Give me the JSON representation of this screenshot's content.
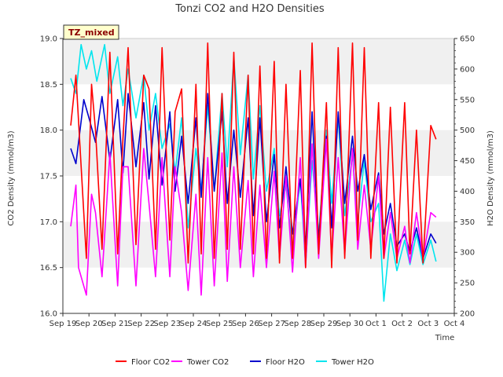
{
  "chart_data": {
    "type": "line",
    "title": "Tonzi CO2 and H2O Densities",
    "badge": "TZ_mixed",
    "xlabel": "Time",
    "ylabel_left": "CO2 Density (mmol/m3)",
    "ylabel_right": "H2O Density (mmol/m3)",
    "xlim": [
      0,
      15
    ],
    "ylim_left": [
      16.0,
      19.0
    ],
    "ylim_right": [
      200,
      650
    ],
    "x_ticks": [
      {
        "pos": 0,
        "label": "Sep 19"
      },
      {
        "pos": 1,
        "label": "Sep 20"
      },
      {
        "pos": 2,
        "label": "Sep 21"
      },
      {
        "pos": 3,
        "label": "Sep 22"
      },
      {
        "pos": 4,
        "label": "Sep 23"
      },
      {
        "pos": 5,
        "label": "Sep 24"
      },
      {
        "pos": 6,
        "label": "Sep 25"
      },
      {
        "pos": 7,
        "label": "Sep 26"
      },
      {
        "pos": 8,
        "label": "Sep 27"
      },
      {
        "pos": 9,
        "label": "Sep 28"
      },
      {
        "pos": 10,
        "label": "Sep 29"
      },
      {
        "pos": 11,
        "label": "Sep 30"
      },
      {
        "pos": 12,
        "label": "Oct 1"
      },
      {
        "pos": 13,
        "label": "Oct 2"
      },
      {
        "pos": 14,
        "label": "Oct 3"
      },
      {
        "pos": 15,
        "label": "Oct 4"
      }
    ],
    "y_ticks_left": [
      "16.0",
      "16.5",
      "17.0",
      "17.5",
      "18.0",
      "18.5",
      "19.0"
    ],
    "y_ticks_right": [
      "200",
      "250",
      "300",
      "350",
      "400",
      "450",
      "500",
      "550",
      "600",
      "650"
    ],
    "grid": "horizontal bands",
    "legend_position": "bottom",
    "series": [
      {
        "name": "Floor CO2",
        "color": "#ff0000",
        "axis": "left",
        "x": [
          0.3,
          0.5,
          0.9,
          1.1,
          1.25,
          1.5,
          1.8,
          2.1,
          2.3,
          2.5,
          2.8,
          3.1,
          3.3,
          3.55,
          3.8,
          4.1,
          4.3,
          4.55,
          4.8,
          5.1,
          5.3,
          5.55,
          5.8,
          6.1,
          6.3,
          6.55,
          6.8,
          7.1,
          7.3,
          7.55,
          7.8,
          8.1,
          8.3,
          8.55,
          8.8,
          9.1,
          9.3,
          9.55,
          9.8,
          10.1,
          10.3,
          10.55,
          10.8,
          11.1,
          11.3,
          11.55,
          11.8,
          12.1,
          12.3,
          12.55,
          12.8,
          13.1,
          13.3,
          13.55,
          13.8,
          14.1,
          14.3
        ],
        "y": [
          18.05,
          18.6,
          16.6,
          18.5,
          18.0,
          16.7,
          18.85,
          16.65,
          17.9,
          18.9,
          16.75,
          18.6,
          18.45,
          16.7,
          18.9,
          16.8,
          18.2,
          18.45,
          16.55,
          18.5,
          16.65,
          18.95,
          16.6,
          18.4,
          16.7,
          18.85,
          16.7,
          18.6,
          16.65,
          18.7,
          16.6,
          18.75,
          16.55,
          18.5,
          16.6,
          18.65,
          16.5,
          18.95,
          16.65,
          18.3,
          16.5,
          18.9,
          16.6,
          18.95,
          16.8,
          18.9,
          16.6,
          18.3,
          16.6,
          18.25,
          16.55,
          18.3,
          16.65,
          18.0,
          16.55,
          18.05,
          17.9
        ]
      },
      {
        "name": "Tower CO2",
        "color": "#ff00ff",
        "axis": "left",
        "x": [
          0.3,
          0.5,
          0.6,
          0.9,
          1.1,
          1.25,
          1.5,
          1.8,
          2.1,
          2.3,
          2.5,
          2.8,
          3.1,
          3.3,
          3.55,
          3.8,
          4.1,
          4.3,
          4.55,
          4.8,
          5.1,
          5.3,
          5.55,
          5.8,
          6.1,
          6.3,
          6.55,
          6.8,
          7.1,
          7.3,
          7.55,
          7.8,
          8.1,
          8.3,
          8.55,
          8.8,
          9.1,
          9.3,
          9.55,
          9.8,
          10.1,
          10.3,
          10.55,
          10.8,
          11.1,
          11.3,
          11.55,
          11.8,
          12.1,
          12.3,
          12.55,
          12.8,
          13.1,
          13.3,
          13.55,
          13.8,
          14.1,
          14.3
        ],
        "y": [
          16.95,
          17.4,
          16.5,
          16.2,
          17.3,
          17.1,
          16.4,
          17.75,
          16.3,
          17.6,
          17.6,
          16.3,
          17.8,
          17.2,
          16.4,
          17.7,
          16.4,
          17.6,
          17.1,
          16.25,
          17.3,
          16.2,
          17.7,
          16.3,
          17.75,
          16.35,
          17.6,
          16.5,
          17.45,
          16.4,
          17.4,
          16.5,
          17.55,
          16.6,
          17.5,
          16.45,
          17.7,
          16.5,
          17.85,
          16.6,
          17.9,
          16.6,
          17.7,
          16.65,
          17.8,
          16.7,
          17.4,
          16.7,
          17.5,
          16.6,
          17.1,
          16.6,
          16.95,
          16.55,
          17.1,
          16.6,
          17.1,
          17.05
        ]
      },
      {
        "name": "Floor H2O",
        "color": "#0000cc",
        "axis": "right",
        "x": [
          0.3,
          0.5,
          0.8,
          1.0,
          1.25,
          1.5,
          1.8,
          2.1,
          2.3,
          2.5,
          2.8,
          3.1,
          3.3,
          3.55,
          3.8,
          4.1,
          4.3,
          4.55,
          4.8,
          5.1,
          5.3,
          5.55,
          5.8,
          6.1,
          6.3,
          6.55,
          6.8,
          7.1,
          7.3,
          7.55,
          7.8,
          8.1,
          8.3,
          8.55,
          8.8,
          9.1,
          9.3,
          9.55,
          9.8,
          10.1,
          10.3,
          10.55,
          10.8,
          11.1,
          11.3,
          11.55,
          11.8,
          12.1,
          12.3,
          12.55,
          12.8,
          13.1,
          13.3,
          13.55,
          13.8,
          14.1,
          14.3
        ],
        "y": [
          470,
          445,
          550,
          520,
          480,
          555,
          450,
          550,
          430,
          560,
          440,
          545,
          420,
          540,
          410,
          530,
          400,
          490,
          380,
          520,
          390,
          560,
          400,
          530,
          380,
          500,
          390,
          520,
          360,
          520,
          350,
          460,
          340,
          440,
          330,
          420,
          310,
          530,
          320,
          490,
          340,
          530,
          380,
          490,
          400,
          460,
          370,
          430,
          330,
          380,
          310,
          330,
          300,
          340,
          290,
          330,
          315
        ]
      },
      {
        "name": "Tower H2O",
        "color": "#00e5ee",
        "axis": "right",
        "x": [
          0.3,
          0.5,
          0.7,
          0.9,
          1.1,
          1.3,
          1.6,
          1.8,
          2.1,
          2.3,
          2.5,
          2.8,
          3.1,
          3.3,
          3.55,
          3.8,
          4.1,
          4.3,
          4.55,
          4.8,
          5.1,
          5.3,
          5.55,
          5.8,
          6.1,
          6.3,
          6.55,
          6.8,
          7.1,
          7.3,
          7.55,
          7.8,
          8.1,
          8.3,
          8.55,
          8.8,
          9.1,
          9.3,
          9.55,
          9.8,
          10.1,
          10.3,
          10.55,
          10.8,
          11.1,
          11.3,
          11.55,
          11.8,
          12.1,
          12.3,
          12.55,
          12.8,
          13.1,
          13.3,
          13.55,
          13.8,
          14.1,
          14.3
        ],
        "y": [
          585,
          560,
          640,
          600,
          630,
          580,
          640,
          560,
          620,
          540,
          600,
          520,
          590,
          500,
          560,
          470,
          510,
          430,
          520,
          340,
          470,
          400,
          540,
          400,
          560,
          440,
          620,
          460,
          590,
          420,
          540,
          400,
          470,
          360,
          410,
          300,
          420,
          280,
          450,
          330,
          500,
          380,
          520,
          360,
          460,
          350,
          450,
          350,
          380,
          220,
          330,
          270,
          320,
          280,
          330,
          280,
          320,
          285
        ]
      }
    ]
  }
}
